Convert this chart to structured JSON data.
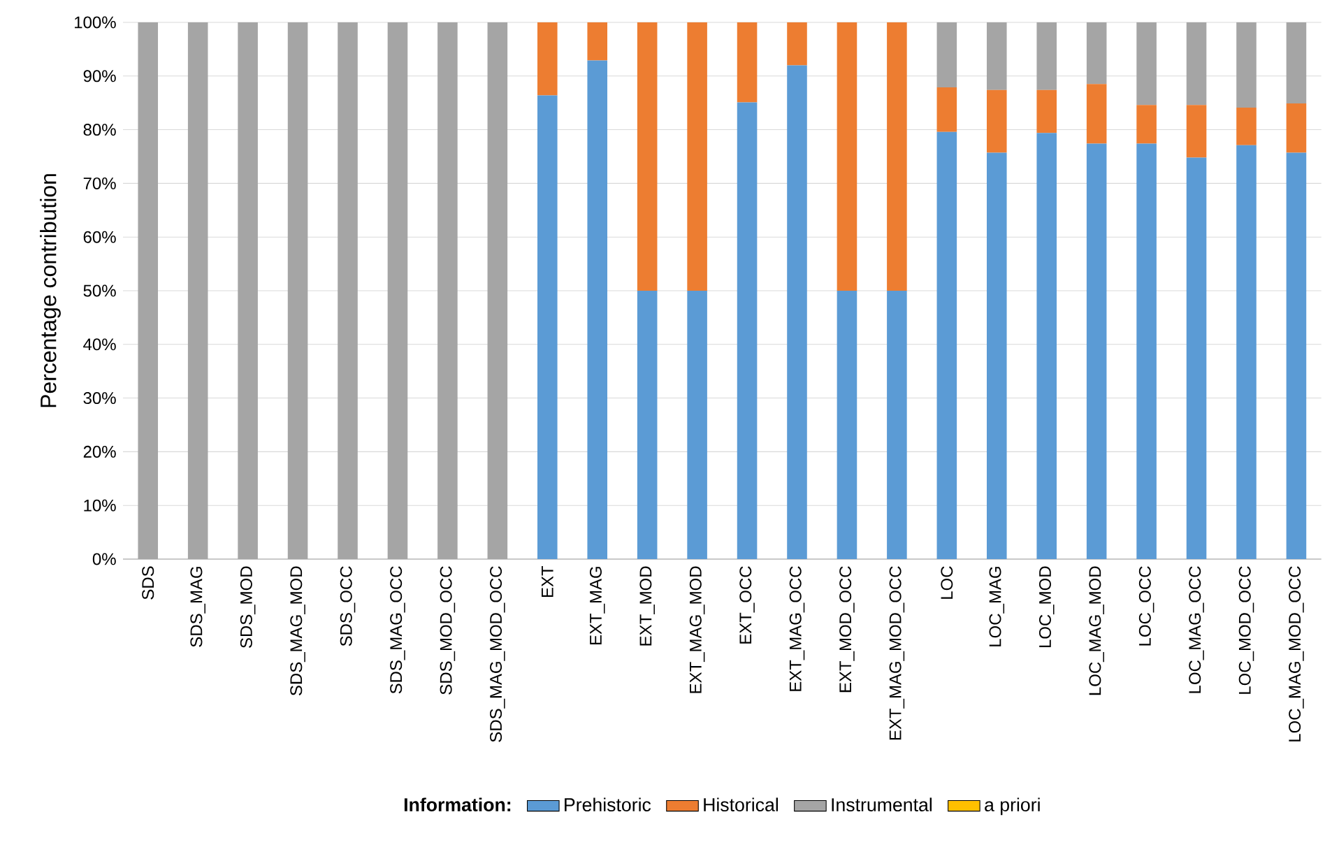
{
  "chart_data": {
    "type": "bar",
    "stacked": true,
    "ylabel": "Percentage contribution",
    "legend_title": "Information:",
    "categories": [
      "SDS",
      "SDS_MAG",
      "SDS_MOD",
      "SDS_MAG_MOD",
      "SDS_OCC",
      "SDS_MAG_OCC",
      "SDS_MOD_OCC",
      "SDS_MAG_MOD_OCC",
      "EXT",
      "EXT_MAG",
      "EXT_MOD",
      "EXT_MAG_MOD",
      "EXT_OCC",
      "EXT_MAG_OCC",
      "EXT_MOD_OCC",
      "EXT_MAG_MOD_OCC",
      "LOC",
      "LOC_MAG",
      "LOC_MOD",
      "LOC_MAG_MOD",
      "LOC_OCC",
      "LOC_MAG_OCC",
      "LOC_MOD_OCC",
      "LOC_MAG_MOD_OCC"
    ],
    "series": [
      {
        "name": "Prehistoric",
        "color": "#5b9bd5",
        "values": [
          0,
          0,
          0,
          0,
          0,
          0,
          0,
          0,
          86.4,
          92.9,
          50,
          50,
          85.1,
          92,
          50,
          50,
          79.6,
          75.7,
          79.4,
          77.4,
          77.4,
          74.8,
          77.1,
          75.7
        ]
      },
      {
        "name": "Historical",
        "color": "#ed7d31",
        "values": [
          0,
          0,
          0,
          0,
          0,
          0,
          0,
          0,
          13.6,
          7.1,
          50,
          50,
          14.9,
          8,
          50,
          50,
          8.3,
          11.7,
          8,
          11.1,
          7.2,
          9.8,
          7,
          9.2
        ]
      },
      {
        "name": "Instrumental",
        "color": "#a5a5a5",
        "values": [
          100,
          100,
          100,
          100,
          100,
          100,
          100,
          100,
          0,
          0,
          0,
          0,
          0,
          0,
          0,
          0,
          12.1,
          12.6,
          12.6,
          11.5,
          15.4,
          15.4,
          15.9,
          15.1
        ]
      },
      {
        "name": "a priori",
        "color": "#ffc000",
        "values": [
          0,
          0,
          0,
          0,
          0,
          0,
          0,
          0,
          0,
          0,
          0,
          0,
          0,
          0,
          0,
          0,
          0,
          0,
          0,
          0,
          0,
          0,
          0,
          0
        ]
      }
    ],
    "ylim": [
      0,
      100
    ],
    "yticks": [
      {
        "value": 0,
        "label": "0%"
      },
      {
        "value": 10,
        "label": "10%"
      },
      {
        "value": 20,
        "label": "20%"
      },
      {
        "value": 30,
        "label": "30%"
      },
      {
        "value": 40,
        "label": "40%"
      },
      {
        "value": 50,
        "label": "50%"
      },
      {
        "value": 60,
        "label": "60%"
      },
      {
        "value": 70,
        "label": "70%"
      },
      {
        "value": 80,
        "label": "80%"
      },
      {
        "value": 90,
        "label": "90%"
      },
      {
        "value": 100,
        "label": "100%"
      }
    ],
    "grid": "y",
    "legend": "bottom"
  }
}
